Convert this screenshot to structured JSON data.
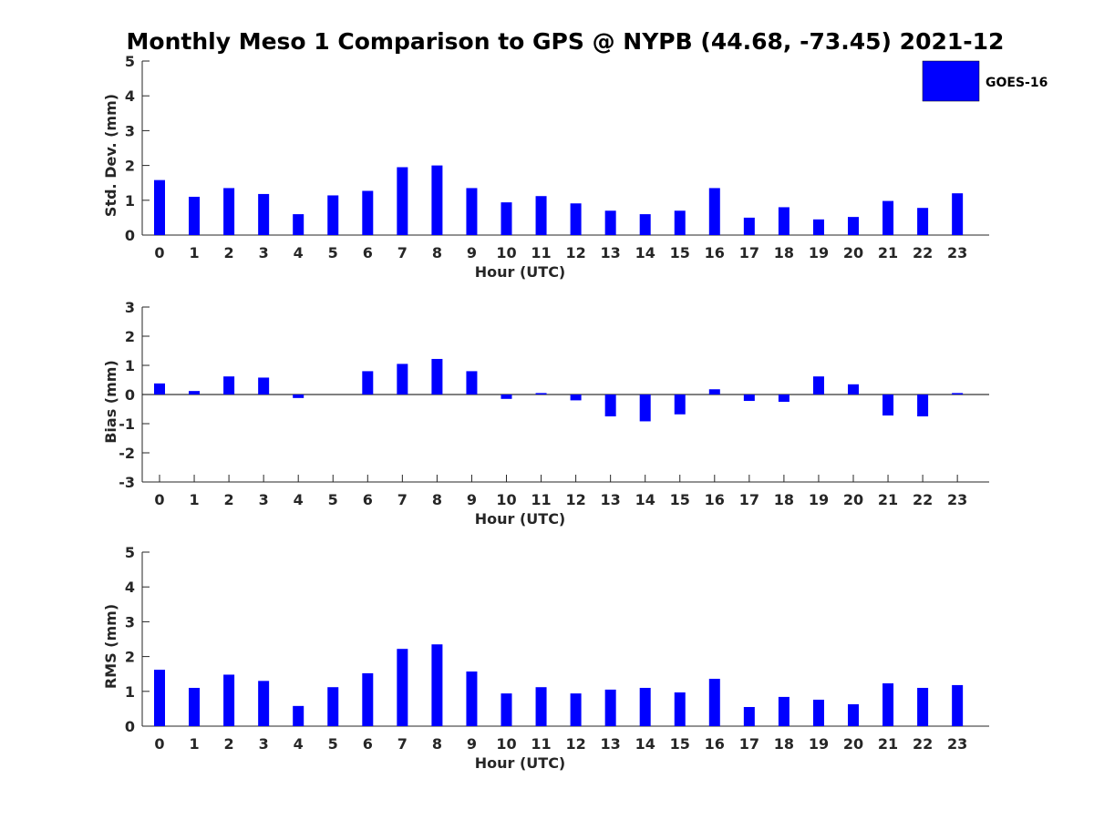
{
  "title": "Monthly Meso 1 Comparison to GPS @ NYPB (44.68, -73.45) 2021-12",
  "legend": {
    "label": "GOES-16",
    "color": "#0000ff",
    "position": "top-right"
  },
  "chart_data": [
    {
      "type": "bar",
      "name": "std",
      "xlabel": "Hour (UTC)",
      "ylabel": "Std. Dev. (mm)",
      "ylim": [
        0,
        5
      ],
      "yticks": [
        0,
        1,
        2,
        3,
        4,
        5
      ],
      "categories": [
        "0",
        "1",
        "2",
        "3",
        "4",
        "5",
        "6",
        "7",
        "8",
        "9",
        "10",
        "11",
        "12",
        "13",
        "14",
        "15",
        "16",
        "17",
        "18",
        "19",
        "20",
        "21",
        "22",
        "23"
      ],
      "series": [
        {
          "name": "GOES-16",
          "values": [
            1.58,
            1.1,
            1.35,
            1.18,
            0.6,
            1.14,
            1.27,
            1.95,
            2.0,
            1.35,
            0.94,
            1.12,
            0.91,
            0.7,
            0.6,
            0.7,
            1.35,
            0.5,
            0.8,
            0.45,
            0.52,
            0.98,
            0.78,
            1.2
          ]
        }
      ],
      "grid": false
    },
    {
      "type": "bar",
      "name": "bias",
      "xlabel": "Hour (UTC)",
      "ylabel": "Bias (mm)",
      "ylim": [
        -3,
        3
      ],
      "yticks": [
        -3,
        -2,
        -1,
        0,
        1,
        2,
        3
      ],
      "categories": [
        "0",
        "1",
        "2",
        "3",
        "4",
        "5",
        "6",
        "7",
        "8",
        "9",
        "10",
        "11",
        "12",
        "13",
        "14",
        "15",
        "16",
        "17",
        "18",
        "19",
        "20",
        "21",
        "22",
        "23"
      ],
      "series": [
        {
          "name": "GOES-16",
          "values": [
            0.38,
            0.12,
            0.62,
            0.58,
            -0.12,
            0.0,
            0.8,
            1.05,
            1.22,
            0.8,
            -0.15,
            0.05,
            -0.2,
            -0.75,
            -0.92,
            -0.68,
            0.18,
            -0.22,
            -0.25,
            0.62,
            0.35,
            -0.72,
            -0.75,
            0.05
          ]
        }
      ],
      "zero_line": true,
      "grid": false
    },
    {
      "type": "bar",
      "name": "rms",
      "xlabel": "Hour (UTC)",
      "ylabel": "RMS (mm)",
      "ylim": [
        0,
        5
      ],
      "yticks": [
        0,
        1,
        2,
        3,
        4,
        5
      ],
      "categories": [
        "0",
        "1",
        "2",
        "3",
        "4",
        "5",
        "6",
        "7",
        "8",
        "9",
        "10",
        "11",
        "12",
        "13",
        "14",
        "15",
        "16",
        "17",
        "18",
        "19",
        "20",
        "21",
        "22",
        "23"
      ],
      "series": [
        {
          "name": "GOES-16",
          "values": [
            1.62,
            1.1,
            1.48,
            1.3,
            0.58,
            1.12,
            1.52,
            2.22,
            2.35,
            1.57,
            0.94,
            1.12,
            0.94,
            1.05,
            1.1,
            0.97,
            1.36,
            0.55,
            0.84,
            0.76,
            0.63,
            1.23,
            1.1,
            1.18
          ]
        }
      ],
      "grid": false
    }
  ]
}
